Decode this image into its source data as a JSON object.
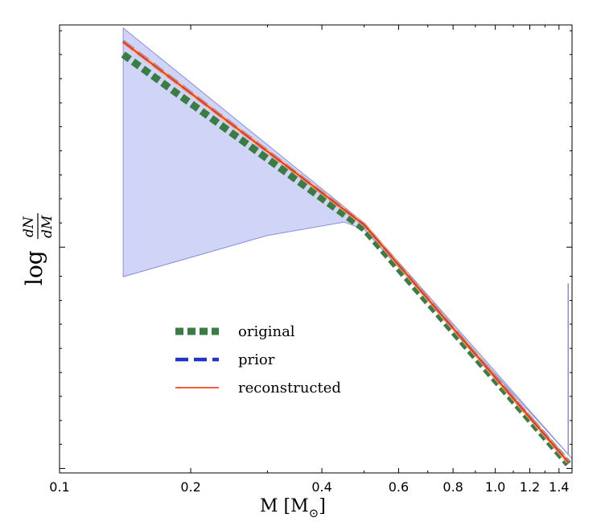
{
  "chart_data": {
    "type": "line",
    "xscale": "log",
    "xlim": [
      0.1,
      1.5
    ],
    "ylim": [
      0,
      1
    ],
    "xlabel": "M [M☉]",
    "xlabel_main": "M [M",
    "xlabel_sub": "⊙",
    "xlabel_close": "]",
    "ylabel_prefix": "log",
    "ylabel_num": "dN",
    "ylabel_den": "dM",
    "xticks": [
      {
        "value": 0.1,
        "label": "0.1"
      },
      {
        "value": 0.2,
        "label": "0.2"
      },
      {
        "value": 0.4,
        "label": "0.4"
      },
      {
        "value": 0.6,
        "label": "0.6"
      },
      {
        "value": 0.8,
        "label": "0.8"
      },
      {
        "value": 1.0,
        "label": "1.0"
      },
      {
        "value": 1.2,
        "label": "1.2"
      },
      {
        "value": 1.4,
        "label": "1.4"
      }
    ],
    "xminor": [
      0.3,
      0.5,
      0.7,
      0.9,
      1.1,
      1.3,
      1.5
    ],
    "yticks_major": [
      0.01,
      0.504
    ],
    "yticks_minor": [
      0.064,
      0.117,
      0.171,
      0.224,
      0.278,
      0.332,
      0.385,
      0.439,
      0.558,
      0.612,
      0.665,
      0.719,
      0.773,
      0.826,
      0.88,
      0.934,
      0.987
    ],
    "band": {
      "color": "#aab0ee",
      "upper": [
        [
          0.14,
          0.993
        ],
        [
          0.5,
          0.558
        ],
        [
          1.5,
          0.032
        ]
      ],
      "lower": [
        [
          0.14,
          0.438
        ],
        [
          0.3,
          0.53
        ],
        [
          0.45,
          0.56
        ],
        [
          0.5,
          0.543
        ]
      ]
    },
    "spike": {
      "x": 1.47,
      "y_from": 0.04,
      "y_to": 0.423
    },
    "series": [
      {
        "name": "original",
        "color": "#3a7d44",
        "style": "dotted",
        "points": [
          [
            0.14,
            0.934
          ],
          [
            0.5,
            0.545
          ],
          [
            1.47,
            0.02
          ]
        ]
      },
      {
        "name": "prior",
        "color": "#2233cc",
        "style": "dashed",
        "points": [
          [
            0.14,
            0.963
          ],
          [
            0.5,
            0.554
          ],
          [
            1.47,
            0.025
          ]
        ]
      },
      {
        "name": "reconstructed",
        "color": "#ff2200",
        "style": "solid",
        "points": [
          [
            0.14,
            0.962
          ],
          [
            0.5,
            0.554
          ],
          [
            1.47,
            0.024
          ]
        ]
      }
    ],
    "legend": {
      "position": "center-left",
      "entries": [
        "original",
        "prior",
        "reconstructed"
      ]
    }
  }
}
